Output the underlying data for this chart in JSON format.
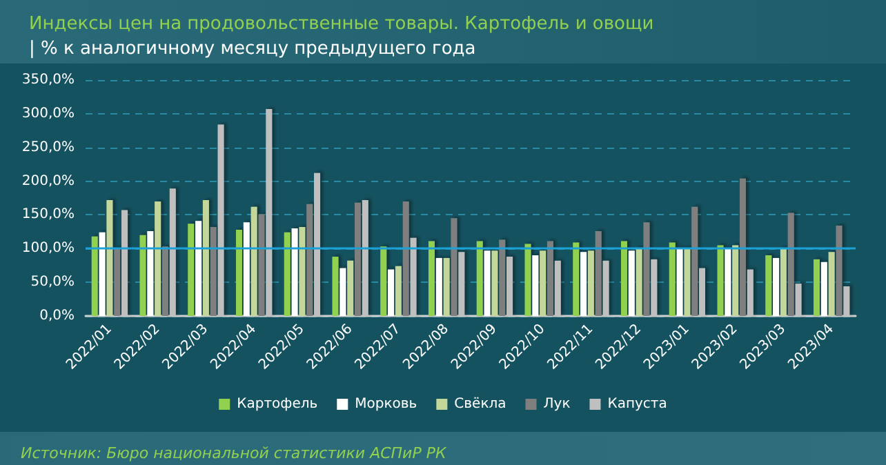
{
  "chart_data": {
    "type": "bar",
    "title": "Индексы цен на продовольственные товары. Картофель и овощи",
    "subtitle": "| % к аналогичному месяцу предыдущего года",
    "categories": [
      "2022/01",
      "2022/02",
      "2022/03",
      "2022/04",
      "2022/05",
      "2022/06",
      "2022/07",
      "2022/08",
      "2022/09",
      "2022/10",
      "2022/11",
      "2022/12",
      "2023/01",
      "2023/02",
      "2023/03",
      "2023/04"
    ],
    "series": [
      {
        "name": "Картофель",
        "color": "#92d050",
        "values": [
          118,
          120,
          137,
          128,
          124,
          88,
          103,
          111,
          111,
          107,
          109,
          111,
          109,
          105,
          90,
          84
        ]
      },
      {
        "name": "Морковь",
        "color": "#ffffff",
        "values": [
          124,
          126,
          141,
          139,
          130,
          71,
          69,
          86,
          97,
          90,
          95,
          97,
          101,
          101,
          86,
          80
        ]
      },
      {
        "name": "Свёкла",
        "color": "#c4d79b",
        "values": [
          172,
          170,
          172,
          162,
          132,
          82,
          74,
          86,
          97,
          97,
          97,
          101,
          101,
          105,
          101,
          95
        ]
      },
      {
        "name": "Лук",
        "color": "#7f7f7f",
        "values": [
          101,
          103,
          132,
          151,
          166,
          168,
          170,
          145,
          113,
          111,
          126,
          139,
          162,
          204,
          153,
          134
        ]
      },
      {
        "name": "Капуста",
        "color": "#bfbfbf",
        "values": [
          157,
          189,
          284,
          307,
          212,
          172,
          116,
          95,
          88,
          82,
          82,
          84,
          71,
          69,
          48,
          44
        ]
      }
    ],
    "ylim": [
      0,
      350
    ],
    "yticks": [
      {
        "value": 0,
        "label": "0,0%"
      },
      {
        "value": 50,
        "label": "50,0%"
      },
      {
        "value": 100,
        "label": "100,0%"
      },
      {
        "value": 150,
        "label": "150,0%"
      },
      {
        "value": 200,
        "label": "200,0%"
      },
      {
        "value": 250,
        "label": "250,0%"
      },
      {
        "value": 300,
        "label": "300,0%"
      },
      {
        "value": 350,
        "label": "350,0%"
      }
    ],
    "grid": "y",
    "legend": "bottom",
    "ref_lines": [
      {
        "axis": "y",
        "value": 100,
        "color": "#1ba1d8",
        "line_style": "solid"
      }
    ],
    "annotations": [
      "Источник: Бюро национальной статистики АСПиР РК"
    ]
  }
}
